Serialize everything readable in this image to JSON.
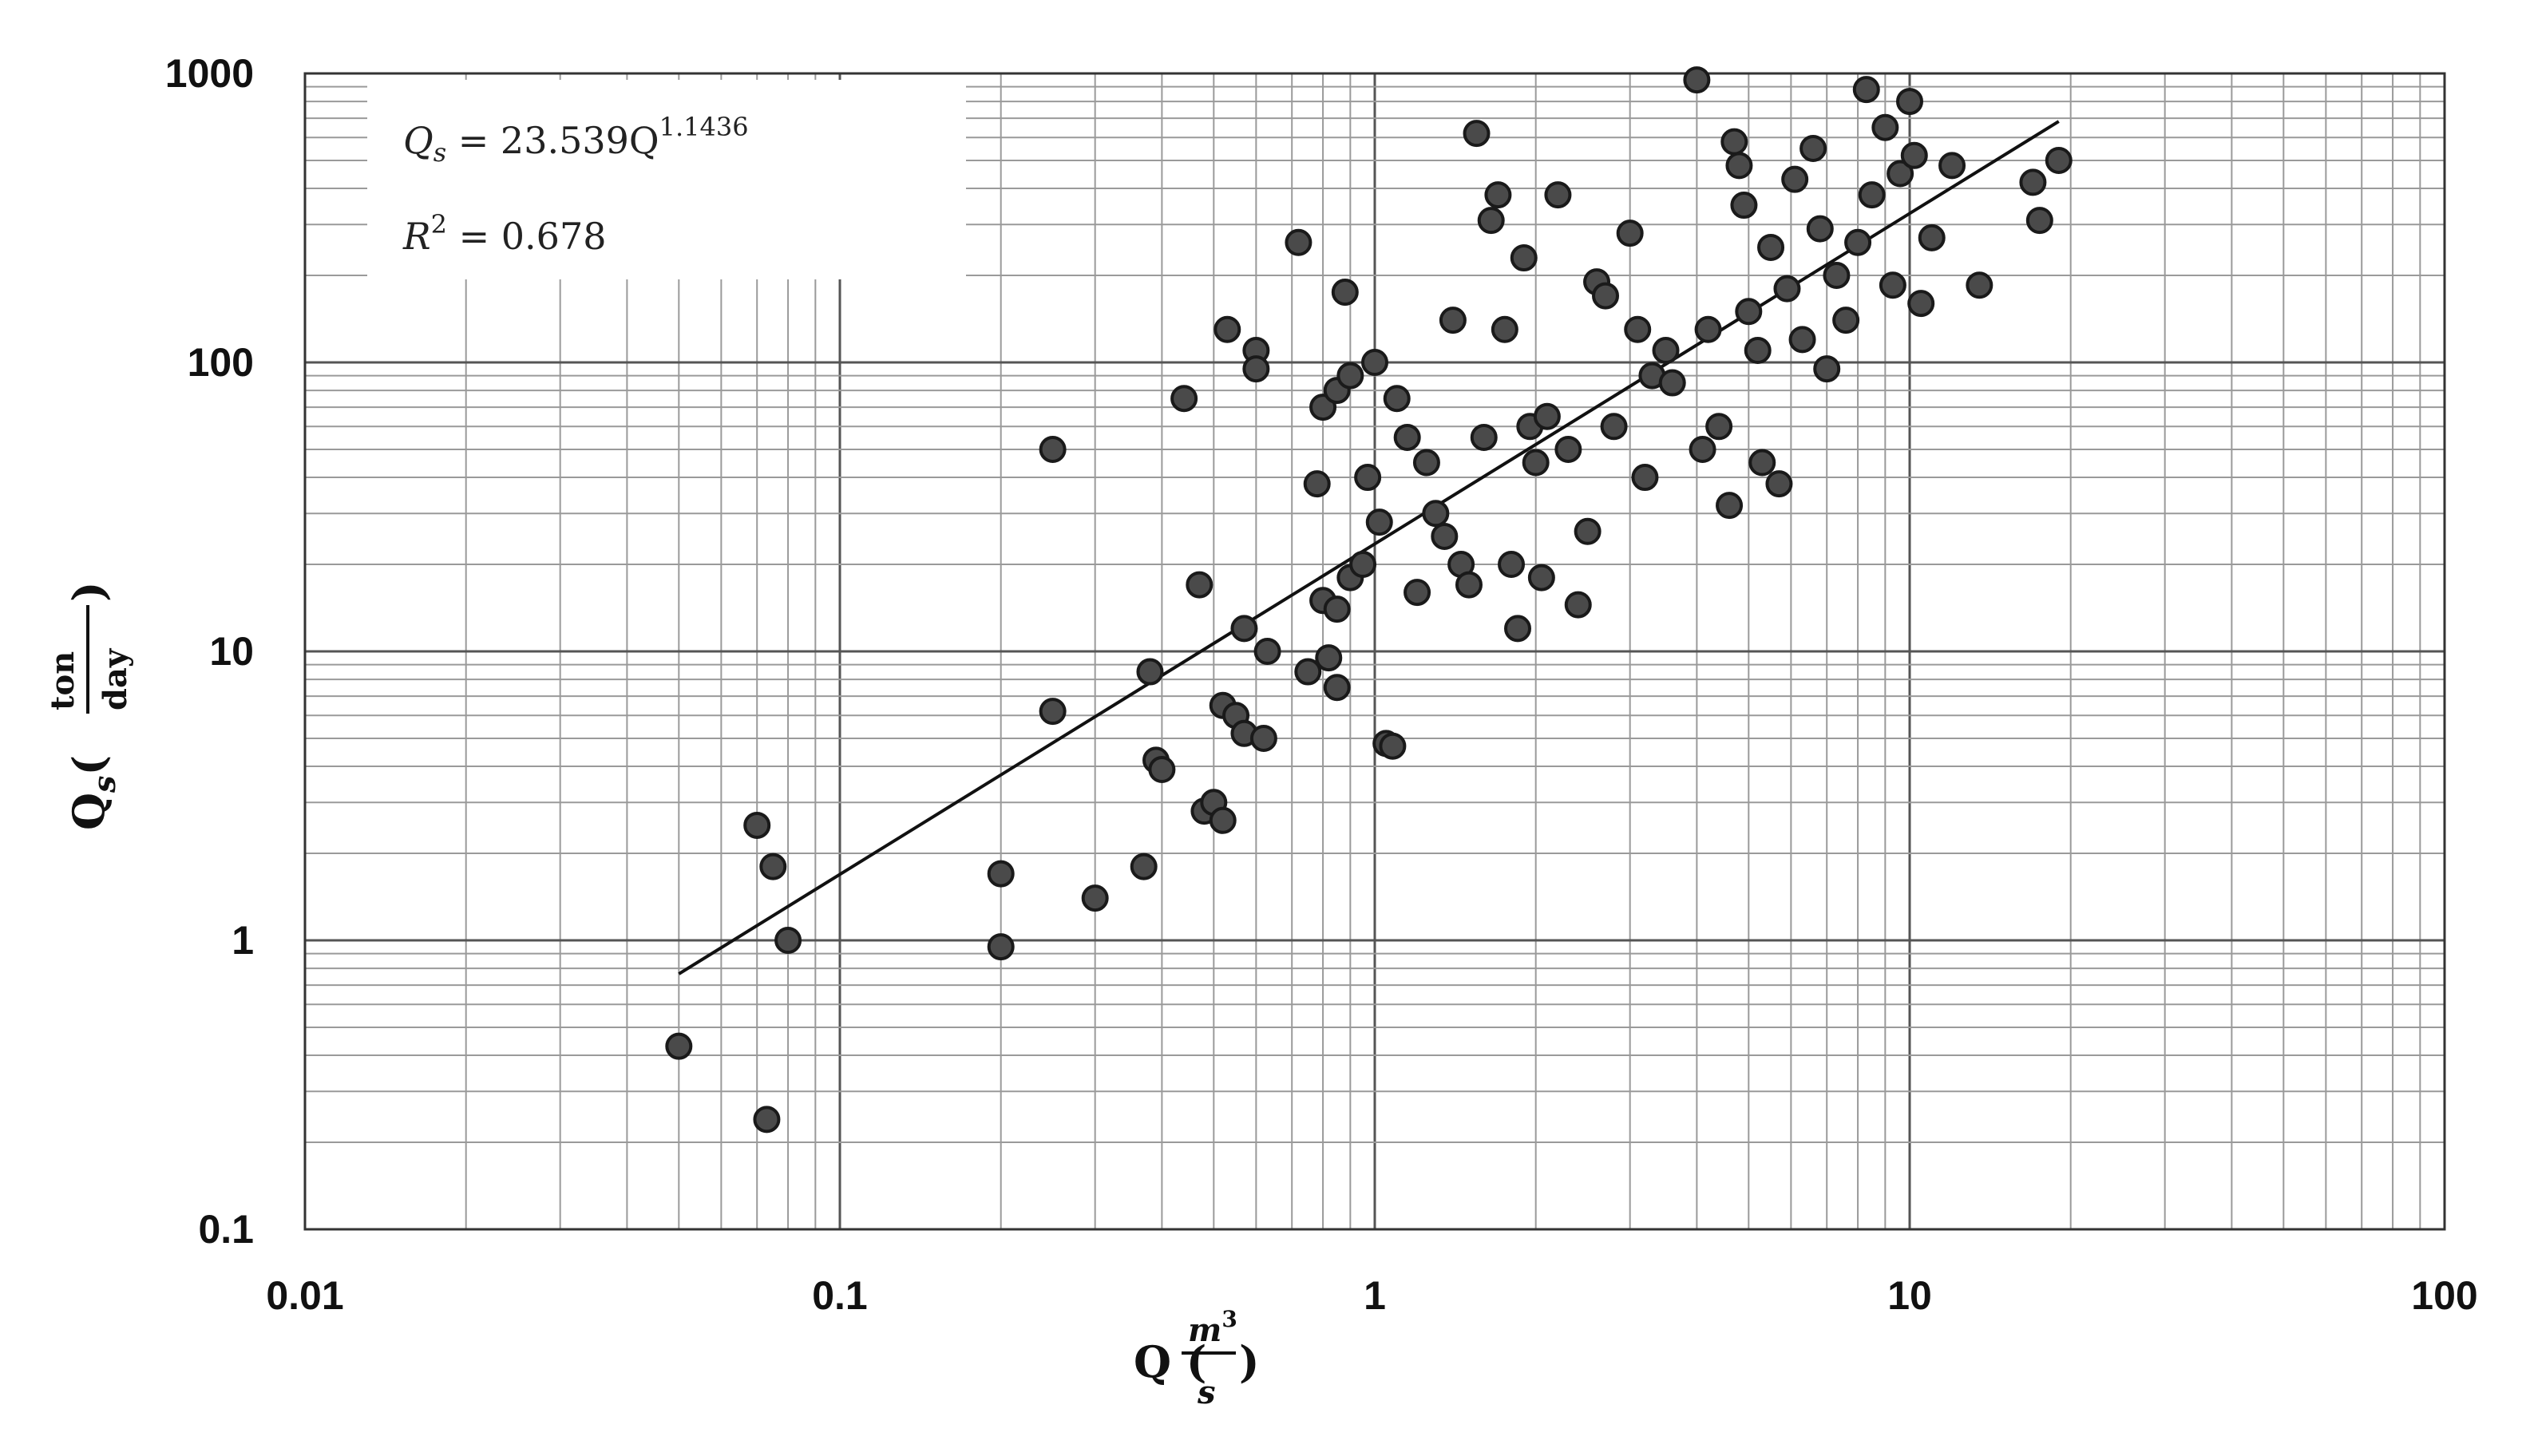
{
  "chart_data": {
    "type": "scatter",
    "x_scale": "log",
    "y_scale": "log",
    "xlim": [
      0.01,
      100
    ],
    "ylim": [
      0.1,
      1000
    ],
    "x_ticks": [
      "0.01",
      "0.1",
      "1",
      "10",
      "100"
    ],
    "y_ticks": [
      "0.1",
      "1",
      "10",
      "100",
      "1000"
    ],
    "grid": true,
    "xlabel": {
      "main": "Q (",
      "num": "m",
      "num_sup": "3",
      "den": "s",
      "close": ")"
    },
    "ylabel": {
      "main": "Q",
      "sub": "s",
      "open": "(",
      "num": "ton",
      "den": "day",
      "close": ")"
    },
    "annotation": {
      "equation": "Qs = 23.539Q^1.1436",
      "eq_lhs": "Q",
      "eq_lhs_sub": "s",
      "eq_rhs": " = 23.539Q",
      "eq_exp": "1.1436",
      "r2_lhs": "R",
      "r2_sup": "2",
      "r2_rhs": " = 0.678"
    },
    "trendline": {
      "a": 23.539,
      "b": 1.1436,
      "x_range": [
        0.05,
        19
      ]
    },
    "series": [
      {
        "points": [
          [
            0.05,
            0.43
          ],
          [
            0.073,
            0.24
          ],
          [
            0.07,
            2.5
          ],
          [
            0.075,
            1.8
          ],
          [
            0.08,
            1.0
          ],
          [
            0.2,
            1.7
          ],
          [
            0.2,
            0.95
          ],
          [
            0.25,
            6.2
          ],
          [
            0.25,
            50
          ],
          [
            0.3,
            1.4
          ],
          [
            0.37,
            1.8
          ],
          [
            0.38,
            8.5
          ],
          [
            0.39,
            4.2
          ],
          [
            0.4,
            3.9
          ],
          [
            0.44,
            75
          ],
          [
            0.47,
            17
          ],
          [
            0.48,
            2.8
          ],
          [
            0.5,
            3.0
          ],
          [
            0.52,
            2.6
          ],
          [
            0.52,
            6.5
          ],
          [
            0.55,
            6.0
          ],
          [
            0.53,
            130
          ],
          [
            0.57,
            5.2
          ],
          [
            0.57,
            12
          ],
          [
            0.6,
            110
          ],
          [
            0.6,
            95
          ],
          [
            0.62,
            5.0
          ],
          [
            0.63,
            10
          ],
          [
            0.72,
            260
          ],
          [
            0.75,
            8.5
          ],
          [
            0.78,
            38
          ],
          [
            0.8,
            15
          ],
          [
            0.82,
            9.5
          ],
          [
            0.85,
            7.5
          ],
          [
            0.85,
            14
          ],
          [
            0.9,
            18
          ],
          [
            0.88,
            175
          ],
          [
            0.8,
            70
          ],
          [
            0.85,
            80
          ],
          [
            0.9,
            90
          ],
          [
            0.95,
            20
          ],
          [
            0.97,
            40
          ],
          [
            1.0,
            100
          ],
          [
            1.02,
            28
          ],
          [
            1.05,
            4.8
          ],
          [
            1.08,
            4.7
          ],
          [
            1.1,
            75
          ],
          [
            1.15,
            55
          ],
          [
            1.2,
            16
          ],
          [
            1.25,
            45
          ],
          [
            1.3,
            30
          ],
          [
            1.35,
            25
          ],
          [
            1.4,
            140
          ],
          [
            1.45,
            20
          ],
          [
            1.5,
            17
          ],
          [
            1.55,
            620
          ],
          [
            1.6,
            55
          ],
          [
            1.65,
            310
          ],
          [
            1.7,
            380
          ],
          [
            1.75,
            130
          ],
          [
            1.8,
            20
          ],
          [
            1.85,
            12
          ],
          [
            1.9,
            230
          ],
          [
            1.95,
            60
          ],
          [
            2.0,
            45
          ],
          [
            2.05,
            18
          ],
          [
            2.1,
            65
          ],
          [
            2.2,
            380
          ],
          [
            2.3,
            50
          ],
          [
            2.4,
            14.5
          ],
          [
            2.5,
            26
          ],
          [
            2.6,
            190
          ],
          [
            2.7,
            170
          ],
          [
            2.8,
            60
          ],
          [
            3.0,
            280
          ],
          [
            3.1,
            130
          ],
          [
            3.2,
            40
          ],
          [
            3.3,
            90
          ],
          [
            3.5,
            110
          ],
          [
            3.6,
            85
          ],
          [
            4.0,
            950
          ],
          [
            4.1,
            50
          ],
          [
            4.2,
            130
          ],
          [
            4.4,
            60
          ],
          [
            4.6,
            32
          ],
          [
            4.7,
            580
          ],
          [
            4.8,
            480
          ],
          [
            4.9,
            350
          ],
          [
            5.0,
            150
          ],
          [
            5.2,
            110
          ],
          [
            5.3,
            45
          ],
          [
            5.5,
            250
          ],
          [
            5.7,
            38
          ],
          [
            5.9,
            180
          ],
          [
            6.1,
            430
          ],
          [
            6.3,
            120
          ],
          [
            6.6,
            550
          ],
          [
            6.8,
            290
          ],
          [
            7.0,
            95
          ],
          [
            7.3,
            200
          ],
          [
            7.6,
            140
          ],
          [
            8.0,
            260
          ],
          [
            8.3,
            880
          ],
          [
            8.5,
            380
          ],
          [
            9.0,
            650
          ],
          [
            9.3,
            185
          ],
          [
            9.6,
            450
          ],
          [
            10.0,
            800
          ],
          [
            10.2,
            520
          ],
          [
            10.5,
            160
          ],
          [
            11.0,
            270
          ],
          [
            12.0,
            480
          ],
          [
            13.5,
            185
          ],
          [
            17.0,
            420
          ],
          [
            17.5,
            310
          ],
          [
            19.0,
            500
          ]
        ]
      }
    ]
  }
}
